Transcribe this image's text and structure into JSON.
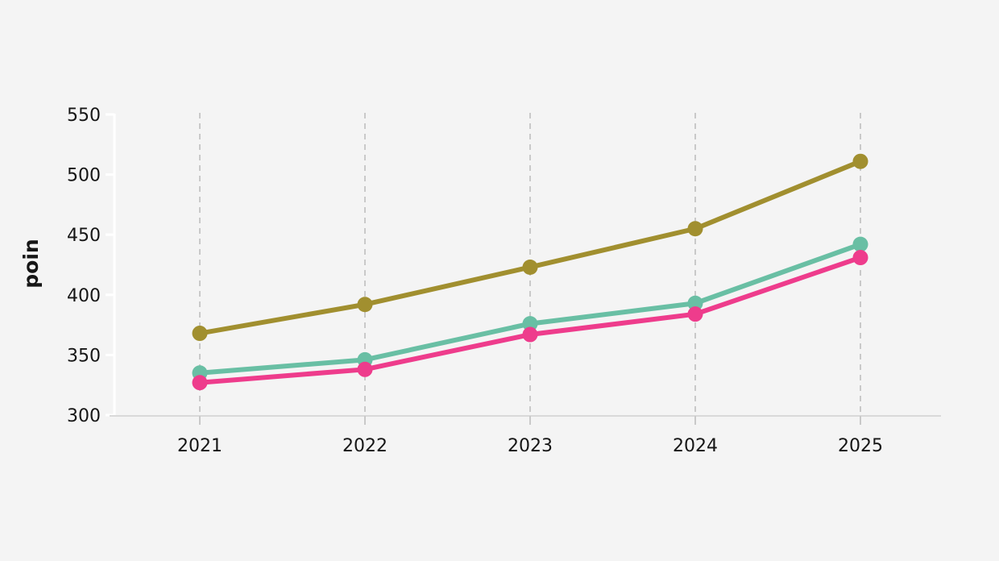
{
  "page": {
    "background_color": "#f4f4f4",
    "text_color": "#161616",
    "grid_color": "#c9c9c9",
    "y_axis_line_color": "#ffffff",
    "x_axis_line_color": "#d9d9d9",
    "x_tick_color": "#c9c9c9"
  },
  "chart_data": {
    "type": "line",
    "title": "",
    "xlabel": "",
    "ylabel": "poin",
    "x": [
      2021,
      2022,
      2023,
      2024,
      2025
    ],
    "xticklabels": [
      "2021",
      "2022",
      "2023",
      "2024",
      "2025"
    ],
    "yticks": [
      300,
      350,
      400,
      450,
      500,
      550
    ],
    "ylim": [
      300,
      550
    ],
    "grid": "vertical-dashed-only",
    "legend": "none",
    "markers": "filled-circles",
    "series": [
      {
        "name": "series-1-olive",
        "color": "#a18f2f",
        "values": [
          368,
          392,
          423,
          455,
          511
        ]
      },
      {
        "name": "series-2-teal",
        "color": "#69bfa4",
        "values": [
          335,
          346,
          376,
          393,
          442
        ]
      },
      {
        "name": "series-3-pink",
        "color": "#ee3c8c",
        "values": [
          327,
          338,
          367,
          384,
          431
        ]
      }
    ]
  }
}
